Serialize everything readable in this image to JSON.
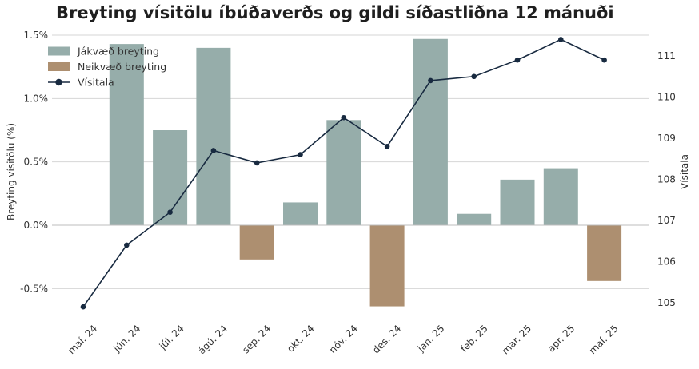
{
  "chart_data": {
    "type": "bar+line",
    "title": "Breyting vísitölu íbúðaverðs og gildi síðastliðna 12 mánuði",
    "categories": [
      "maí. 24",
      "jún. 24",
      "júl. 24",
      "ágú. 24",
      "sep. 24",
      "okt. 24",
      "nóv. 24",
      "des. 24",
      "jan. 25",
      "feb. 25",
      "mar. 25",
      "apr. 25",
      "maí. 25"
    ],
    "y_left": {
      "label": "Breyting vísitölu (%)",
      "min": -0.75,
      "max": 1.5,
      "ticks": [
        1.5,
        1.0,
        0.5,
        0.0,
        -0.5
      ],
      "tick_labels": [
        "1.5%",
        "1.0%",
        "0.5%",
        "0.0%",
        "-0.5%"
      ]
    },
    "y_right": {
      "label": "Vísitala",
      "min": 104.6,
      "max": 111.5,
      "ticks": [
        111,
        110,
        109,
        108,
        107,
        106,
        105
      ],
      "tick_labels": [
        "111",
        "110",
        "109",
        "108",
        "107",
        "106",
        "105"
      ]
    },
    "bars": {
      "values": [
        null,
        1.43,
        0.75,
        1.4,
        -0.27,
        0.18,
        0.83,
        -0.64,
        1.47,
        0.09,
        0.36,
        0.45,
        -0.44
      ],
      "positive_color": "#96adaa",
      "negative_color": "#ad8f70"
    },
    "line": {
      "name": "Vísitala",
      "values": [
        104.9,
        106.4,
        107.2,
        108.7,
        108.4,
        108.6,
        109.5,
        108.8,
        110.4,
        110.5,
        110.9,
        111.4,
        110.9
      ],
      "color": "#182a40"
    },
    "legend": {
      "position": "top-left",
      "entries": [
        {
          "label": "Jákvæð breyting",
          "type": "bar",
          "color": "#96adaa"
        },
        {
          "label": "Neikvæð breyting",
          "type": "bar",
          "color": "#ad8f70"
        },
        {
          "label": "Vísitala",
          "type": "line",
          "color": "#182a40"
        }
      ]
    },
    "grid": true
  }
}
